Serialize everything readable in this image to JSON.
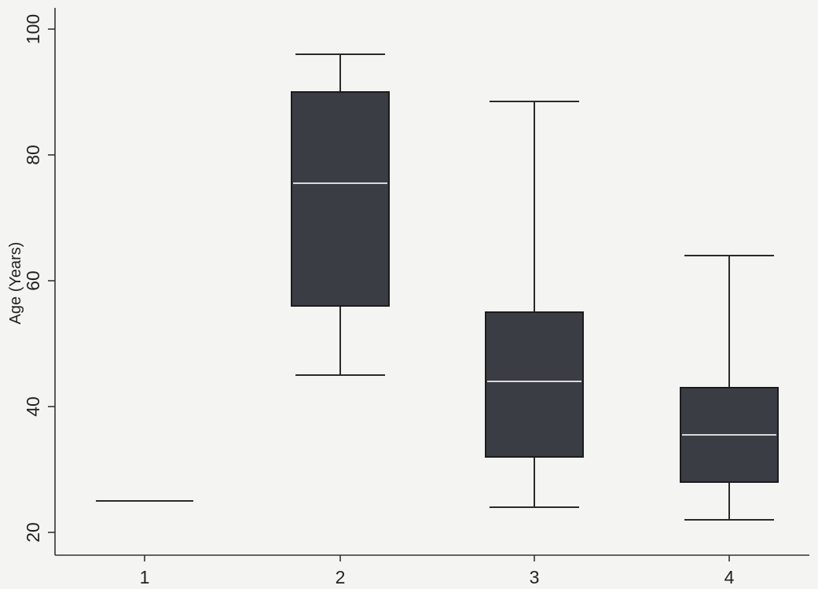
{
  "chart_data": {
    "type": "box",
    "title": "",
    "xlabel": "",
    "ylabel": "Age (Years)",
    "ylim": [
      18,
      103
    ],
    "y_ticks": [
      20,
      40,
      60,
      80,
      100
    ],
    "grid": false,
    "categories": [
      "1",
      "2",
      "3",
      "4"
    ],
    "boxes": [
      {
        "category": "1",
        "min": 25,
        "q1": 25,
        "median": 25,
        "q3": 25,
        "max": 25
      },
      {
        "category": "2",
        "min": 45,
        "q1": 56,
        "median": 75.5,
        "q3": 90,
        "max": 96
      },
      {
        "category": "3",
        "min": 24,
        "q1": 32,
        "median": 44,
        "q3": 55,
        "max": 88.5
      },
      {
        "category": "4",
        "min": 22,
        "q1": 28,
        "median": 35.5,
        "q3": 43,
        "max": 64
      }
    ]
  }
}
